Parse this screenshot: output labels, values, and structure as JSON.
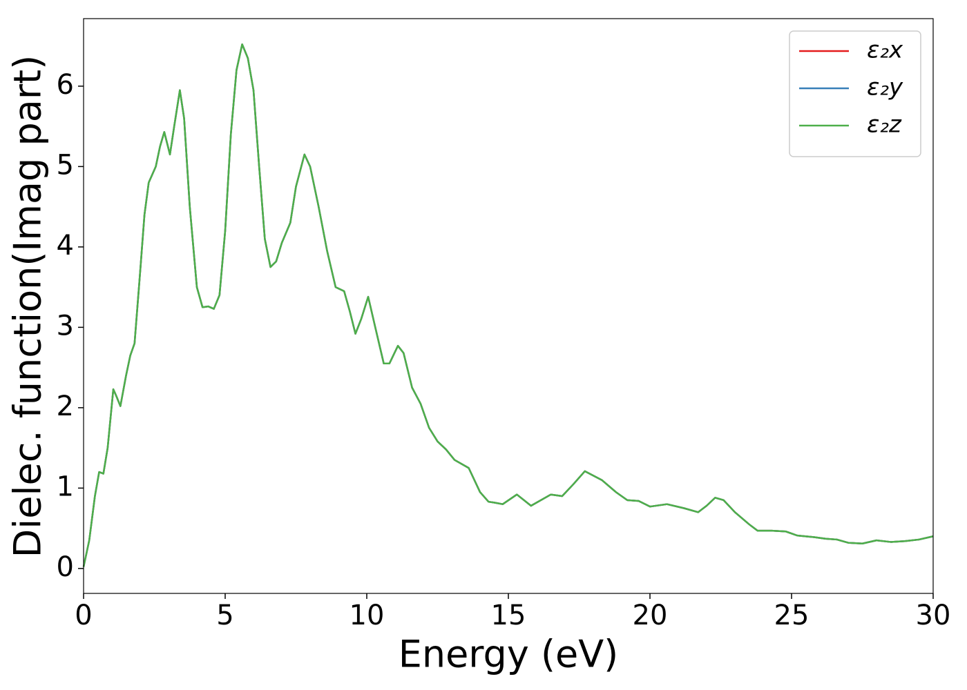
{
  "chart_data": {
    "type": "line",
    "xlabel": "Energy (eV)",
    "ylabel": "Dielec. function(Imag part)",
    "xlim": [
      0,
      30
    ],
    "ylim": [
      -0.31,
      6.84
    ],
    "xticks": [
      0,
      5,
      10,
      15,
      20,
      25,
      30
    ],
    "yticks": [
      0,
      1,
      2,
      3,
      4,
      5,
      6
    ],
    "legend": "upper right",
    "x": [
      0,
      0.2,
      0.4,
      0.55,
      0.7,
      0.85,
      1.05,
      1.15,
      1.3,
      1.5,
      1.65,
      1.8,
      2.0,
      2.15,
      2.3,
      2.55,
      2.7,
      2.85,
      3.05,
      3.2,
      3.4,
      3.55,
      3.75,
      4.0,
      4.2,
      4.4,
      4.6,
      4.8,
      5.0,
      5.2,
      5.4,
      5.6,
      5.8,
      6.0,
      6.2,
      6.4,
      6.6,
      6.8,
      7.0,
      7.3,
      7.5,
      7.8,
      8.0,
      8.3,
      8.6,
      8.9,
      9.2,
      9.4,
      9.6,
      9.8,
      10.05,
      10.3,
      10.6,
      10.8,
      11.1,
      11.3,
      11.6,
      11.9,
      12.2,
      12.5,
      12.8,
      13.1,
      13.6,
      14.0,
      14.3,
      14.5,
      14.8,
      15.3,
      15.8,
      16.5,
      16.9,
      17.3,
      17.7,
      18.3,
      18.8,
      19.2,
      19.6,
      20.0,
      20.6,
      21.2,
      21.7,
      22.0,
      22.3,
      22.6,
      23.0,
      23.5,
      23.8,
      24.3,
      24.8,
      25.2,
      25.8,
      26.2,
      26.6,
      27.0,
      27.5,
      28.0,
      28.5,
      29.0,
      29.5,
      30.0
    ],
    "series": [
      {
        "name": "ε₂x",
        "color": "#e41a1c",
        "values": [
          0.02,
          0.35,
          0.9,
          1.2,
          1.18,
          1.5,
          2.23,
          2.15,
          2.02,
          2.4,
          2.65,
          2.8,
          3.7,
          4.4,
          4.8,
          5.0,
          5.25,
          5.43,
          5.15,
          5.5,
          5.95,
          5.6,
          4.5,
          3.5,
          3.25,
          3.26,
          3.23,
          3.4,
          4.2,
          5.4,
          6.2,
          6.52,
          6.35,
          5.95,
          5.0,
          4.1,
          3.75,
          3.82,
          4.05,
          4.3,
          4.75,
          5.15,
          5.0,
          4.5,
          3.95,
          3.5,
          3.45,
          3.2,
          2.92,
          3.1,
          3.38,
          3.0,
          2.55,
          2.55,
          2.77,
          2.68,
          2.25,
          2.05,
          1.75,
          1.58,
          1.48,
          1.35,
          1.25,
          0.95,
          0.83,
          0.82,
          0.8,
          0.92,
          0.78,
          0.92,
          0.9,
          1.05,
          1.21,
          1.1,
          0.95,
          0.85,
          0.84,
          0.77,
          0.8,
          0.75,
          0.7,
          0.78,
          0.88,
          0.85,
          0.7,
          0.55,
          0.47,
          0.47,
          0.46,
          0.41,
          0.39,
          0.37,
          0.36,
          0.32,
          0.31,
          0.35,
          0.33,
          0.34,
          0.36,
          0.4
        ]
      },
      {
        "name": "ε₂y",
        "color": "#377eb8",
        "values": [
          0.02,
          0.35,
          0.9,
          1.2,
          1.18,
          1.5,
          2.23,
          2.15,
          2.02,
          2.4,
          2.65,
          2.8,
          3.7,
          4.4,
          4.8,
          5.0,
          5.25,
          5.43,
          5.15,
          5.5,
          5.95,
          5.6,
          4.5,
          3.5,
          3.25,
          3.26,
          3.23,
          3.4,
          4.2,
          5.4,
          6.2,
          6.52,
          6.35,
          5.95,
          5.0,
          4.1,
          3.75,
          3.82,
          4.05,
          4.3,
          4.75,
          5.15,
          5.0,
          4.5,
          3.95,
          3.5,
          3.45,
          3.2,
          2.92,
          3.1,
          3.38,
          3.0,
          2.55,
          2.55,
          2.77,
          2.68,
          2.25,
          2.05,
          1.75,
          1.58,
          1.48,
          1.35,
          1.25,
          0.95,
          0.83,
          0.82,
          0.8,
          0.92,
          0.78,
          0.92,
          0.9,
          1.05,
          1.21,
          1.1,
          0.95,
          0.85,
          0.84,
          0.77,
          0.8,
          0.75,
          0.7,
          0.78,
          0.88,
          0.85,
          0.7,
          0.55,
          0.47,
          0.47,
          0.46,
          0.41,
          0.39,
          0.37,
          0.36,
          0.32,
          0.31,
          0.35,
          0.33,
          0.34,
          0.36,
          0.4
        ]
      },
      {
        "name": "ε₂z",
        "color": "#4daf4a",
        "values": [
          0.02,
          0.35,
          0.9,
          1.2,
          1.18,
          1.5,
          2.23,
          2.15,
          2.02,
          2.4,
          2.65,
          2.8,
          3.7,
          4.4,
          4.8,
          5.0,
          5.25,
          5.43,
          5.15,
          5.5,
          5.95,
          5.6,
          4.5,
          3.5,
          3.25,
          3.26,
          3.23,
          3.4,
          4.2,
          5.4,
          6.2,
          6.52,
          6.35,
          5.95,
          5.0,
          4.1,
          3.75,
          3.82,
          4.05,
          4.3,
          4.75,
          5.15,
          5.0,
          4.5,
          3.95,
          3.5,
          3.45,
          3.2,
          2.92,
          3.1,
          3.38,
          3.0,
          2.55,
          2.55,
          2.77,
          2.68,
          2.25,
          2.05,
          1.75,
          1.58,
          1.48,
          1.35,
          1.25,
          0.95,
          0.83,
          0.82,
          0.8,
          0.92,
          0.78,
          0.92,
          0.9,
          1.05,
          1.21,
          1.1,
          0.95,
          0.85,
          0.84,
          0.77,
          0.8,
          0.75,
          0.7,
          0.78,
          0.88,
          0.85,
          0.7,
          0.55,
          0.47,
          0.47,
          0.46,
          0.41,
          0.39,
          0.37,
          0.36,
          0.32,
          0.31,
          0.35,
          0.33,
          0.34,
          0.36,
          0.4
        ]
      }
    ]
  }
}
